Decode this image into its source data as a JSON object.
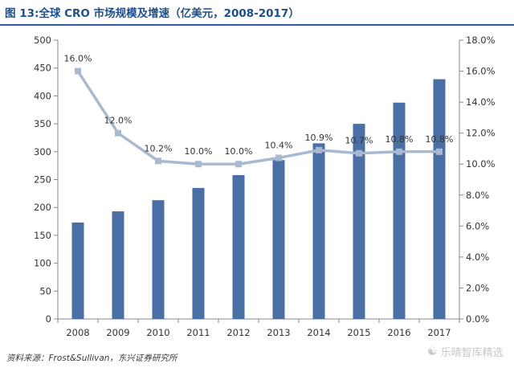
{
  "title": "图 13:全球 CRO 市场规模及增速（亿美元，2008-2017）",
  "source": "资料来源：Frost&Sullivan，东兴证券研究所",
  "watermark": "乐晴智库精选",
  "colors": {
    "bar": "#4a6fa5",
    "line": "#a9b9d1",
    "title": "#1f4e8c"
  },
  "chart_data": {
    "type": "bar+line",
    "categories": [
      "2008",
      "2009",
      "2010",
      "2011",
      "2012",
      "2013",
      "2014",
      "2015",
      "2016",
      "2017"
    ],
    "series": [
      {
        "axis": "left",
        "type": "bar",
        "values": [
          173,
          193,
          213,
          235,
          258,
          285,
          315,
          350,
          388,
          430
        ]
      },
      {
        "axis": "right",
        "type": "line",
        "values": [
          16.0,
          12.0,
          10.2,
          10.0,
          10.0,
          10.4,
          10.9,
          10.7,
          10.8,
          10.8
        ],
        "labels": [
          "16.0%",
          "12.0%",
          "10.2%",
          "10.0%",
          "10.0%",
          "10.4%",
          "10.9%",
          "10.7%",
          "10.8%",
          "10.8%"
        ]
      }
    ],
    "y_left": {
      "min": 0,
      "max": 500,
      "step": 50,
      "ticks": [
        "0",
        "50",
        "100",
        "150",
        "200",
        "250",
        "300",
        "350",
        "400",
        "450",
        "500"
      ]
    },
    "y_right": {
      "min": 0,
      "max": 18,
      "step": 2,
      "ticks": [
        "0.0%",
        "2.0%",
        "4.0%",
        "6.0%",
        "8.0%",
        "10.0%",
        "12.0%",
        "14.0%",
        "16.0%",
        "18.0%"
      ]
    },
    "grid": false,
    "legend": "none"
  }
}
